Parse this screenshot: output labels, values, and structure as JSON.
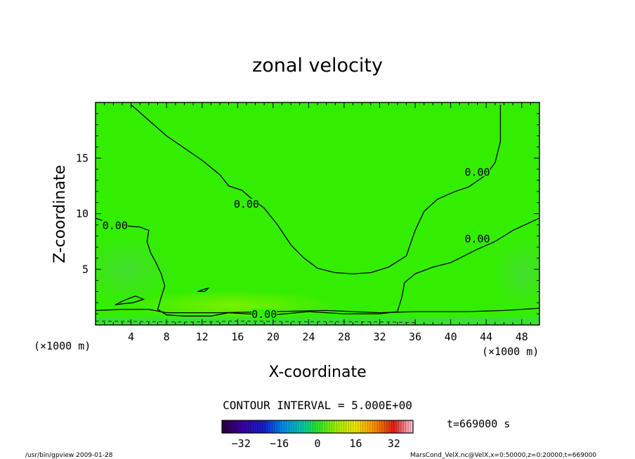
{
  "chart_data": {
    "type": "heatmap",
    "title": "zonal velocity",
    "xlabel": "X-coordinate",
    "ylabel": "Z-coordinate",
    "x_unit": "(×1000 m)",
    "y_unit": "(×1000 m)",
    "xlim": [
      0,
      50
    ],
    "ylim": [
      0,
      20
    ],
    "x_ticks": [
      4,
      8,
      12,
      16,
      20,
      24,
      28,
      32,
      36,
      40,
      44,
      48
    ],
    "y_ticks": [
      5,
      10,
      15
    ],
    "contour_label": "0.00",
    "contour_labels": [
      {
        "x": 17.0,
        "z": 10.9,
        "text": "0.00"
      },
      {
        "x": 2.2,
        "z": 9.0,
        "text": "0.00"
      },
      {
        "x": 43.0,
        "z": 13.8,
        "text": "0.00"
      },
      {
        "x": 43.0,
        "z": 7.8,
        "text": "0.00"
      },
      {
        "x": 19.0,
        "z": 1.0,
        "text": "0.00"
      }
    ],
    "contours": [
      {
        "level": 0,
        "points": [
          [
            4.0,
            19.8
          ],
          [
            6.0,
            18.4
          ],
          [
            8.0,
            17.0
          ],
          [
            10.0,
            15.9
          ],
          [
            12.0,
            14.8
          ],
          [
            14.0,
            13.5
          ],
          [
            15.0,
            12.5
          ],
          [
            16.5,
            12.1
          ],
          [
            17.5,
            11.4
          ],
          [
            19.0,
            10.5
          ],
          [
            20.5,
            9.0
          ],
          [
            22.0,
            7.2
          ],
          [
            23.5,
            6.0
          ],
          [
            25.0,
            5.1
          ],
          [
            27.0,
            4.7
          ],
          [
            29.0,
            4.6
          ],
          [
            31.0,
            4.7
          ],
          [
            33.0,
            5.2
          ],
          [
            35.0,
            6.2
          ],
          [
            36.0,
            8.5
          ],
          [
            37.0,
            10.2
          ],
          [
            38.5,
            11.3
          ],
          [
            40.5,
            12.0
          ],
          [
            42.0,
            12.4
          ],
          [
            44.0,
            13.5
          ],
          [
            45.0,
            14.6
          ],
          [
            45.6,
            16.5
          ],
          [
            45.6,
            19.8
          ]
        ]
      },
      {
        "level": 0,
        "points": [
          [
            0.0,
            9.6
          ],
          [
            1.5,
            9.2
          ],
          [
            3.5,
            8.9
          ],
          [
            5.0,
            8.8
          ],
          [
            6.0,
            8.5
          ],
          [
            5.8,
            7.5
          ],
          [
            6.2,
            6.5
          ],
          [
            6.8,
            5.6
          ],
          [
            7.4,
            4.6
          ],
          [
            7.8,
            3.5
          ],
          [
            7.4,
            2.5
          ],
          [
            7.0,
            1.4
          ],
          [
            8.0,
            0.9
          ],
          [
            10.0,
            0.8
          ],
          [
            13.0,
            0.8
          ],
          [
            15.0,
            1.1
          ],
          [
            17.0,
            1.0
          ],
          [
            20.0,
            0.9
          ],
          [
            24.0,
            1.2
          ],
          [
            28.0,
            1.0
          ],
          [
            32.0,
            1.0
          ],
          [
            34.0,
            1.2
          ],
          [
            34.5,
            2.5
          ],
          [
            34.8,
            3.8
          ],
          [
            36.0,
            4.6
          ],
          [
            38.0,
            5.2
          ],
          [
            40.0,
            5.6
          ],
          [
            43.0,
            6.8
          ],
          [
            45.0,
            7.5
          ],
          [
            47.0,
            8.5
          ],
          [
            50.0,
            9.6
          ]
        ]
      },
      {
        "level": 0,
        "points": [
          [
            0.0,
            1.3
          ],
          [
            3.0,
            1.4
          ],
          [
            6.0,
            1.4
          ],
          [
            8.0,
            1.1
          ],
          [
            14.0,
            1.1
          ],
          [
            20.0,
            1.2
          ],
          [
            26.0,
            1.3
          ],
          [
            32.0,
            1.1
          ],
          [
            36.0,
            1.2
          ],
          [
            42.0,
            1.2
          ],
          [
            46.0,
            1.3
          ],
          [
            50.0,
            1.5
          ]
        ]
      },
      {
        "level": 0,
        "points": [
          [
            2.2,
            1.8
          ],
          [
            3.2,
            2.2
          ],
          [
            4.5,
            2.6
          ],
          [
            5.4,
            2.3
          ],
          [
            4.2,
            2.0
          ],
          [
            3.0,
            1.9
          ],
          [
            2.2,
            1.8
          ]
        ]
      },
      {
        "level": 0,
        "points": [
          [
            11.5,
            3.0
          ],
          [
            12.2,
            3.2
          ],
          [
            12.7,
            3.3
          ],
          [
            12.3,
            3.0
          ],
          [
            11.5,
            3.0
          ]
        ]
      }
    ],
    "dashed_contour": {
      "level": -5,
      "points": [
        [
          0.0,
          0.35
        ],
        [
          6.0,
          0.3
        ],
        [
          10.0,
          0.25
        ],
        [
          16.0,
          0.35
        ],
        [
          22.0,
          0.3
        ],
        [
          28.0,
          0.3
        ],
        [
          34.0,
          0.25
        ],
        [
          36.0,
          0.2
        ]
      ]
    },
    "fill_color": "#33ee00",
    "colorbar": {
      "min": -40,
      "max": 40,
      "ticks": [
        -32,
        -16,
        0,
        16,
        32
      ]
    }
  },
  "contour_interval_text": "CONTOUR INTERVAL = 5.000E+00",
  "time_label": "t=669000 s",
  "footer_left": "/usr/bin/gpview   2009-01-28",
  "footer_right": "MarsCond_VelX.nc@VelX,x=0:50000,z=0:20000,t=669000"
}
